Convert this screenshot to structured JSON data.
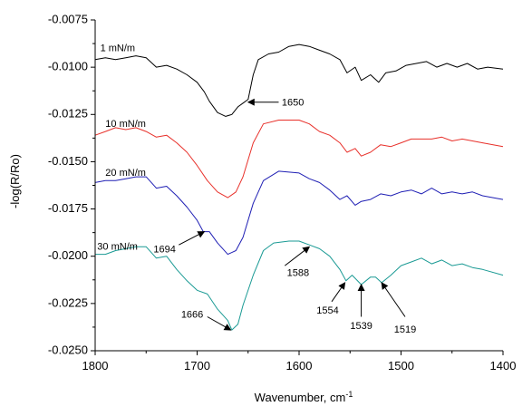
{
  "chart_data": {
    "type": "line",
    "title": "",
    "xlabel": "Wavenumber, cm",
    "xlabel_superscript": "-1",
    "ylabel": "-log(R/Ro)",
    "xlim": [
      1800,
      1400
    ],
    "ylim": [
      -0.025,
      -0.0075
    ],
    "x_ticks": [
      1800,
      1700,
      1600,
      1500,
      1400
    ],
    "x_tick_labels": [
      "1800",
      "1700",
      "1600",
      "1500",
      "1400"
    ],
    "y_ticks": [
      -0.0075,
      -0.01,
      -0.0125,
      -0.015,
      -0.0175,
      -0.02,
      -0.0225,
      -0.025
    ],
    "y_tick_labels": [
      "-0.0075",
      "-0.0100",
      "-0.0125",
      "-0.0150",
      "-0.0175",
      "-0.0200",
      "-0.0225",
      "-0.0250"
    ],
    "grid": false,
    "series": [
      {
        "name": "1 mN/m",
        "color": "#000000",
        "label_pos": [
          1795,
          -0.00915
        ],
        "points": [
          [
            1800,
            -0.0096
          ],
          [
            1790,
            -0.0095
          ],
          [
            1780,
            -0.0096
          ],
          [
            1770,
            -0.0095
          ],
          [
            1760,
            -0.0094
          ],
          [
            1750,
            -0.0095
          ],
          [
            1740,
            -0.01
          ],
          [
            1730,
            -0.0099
          ],
          [
            1720,
            -0.0101
          ],
          [
            1710,
            -0.0104
          ],
          [
            1700,
            -0.0108
          ],
          [
            1693,
            -0.0113
          ],
          [
            1688,
            -0.0118
          ],
          [
            1680,
            -0.0124
          ],
          [
            1672,
            -0.0126
          ],
          [
            1666,
            -0.0125
          ],
          [
            1660,
            -0.0121
          ],
          [
            1655,
            -0.0119
          ],
          [
            1650,
            -0.0117
          ],
          [
            1645,
            -0.0104
          ],
          [
            1640,
            -0.0096
          ],
          [
            1630,
            -0.0093
          ],
          [
            1620,
            -0.0092
          ],
          [
            1610,
            -0.0089
          ],
          [
            1600,
            -0.0088
          ],
          [
            1590,
            -0.0089
          ],
          [
            1580,
            -0.0091
          ],
          [
            1570,
            -0.0093
          ],
          [
            1560,
            -0.0096
          ],
          [
            1553,
            -0.0103
          ],
          [
            1545,
            -0.01
          ],
          [
            1539,
            -0.0107
          ],
          [
            1530,
            -0.0104
          ],
          [
            1522,
            -0.0108
          ],
          [
            1515,
            -0.0103
          ],
          [
            1505,
            -0.0102
          ],
          [
            1495,
            -0.0099
          ],
          [
            1485,
            -0.0098
          ],
          [
            1475,
            -0.0097
          ],
          [
            1465,
            -0.01
          ],
          [
            1455,
            -0.0098
          ],
          [
            1445,
            -0.01
          ],
          [
            1435,
            -0.0098
          ],
          [
            1425,
            -0.0101
          ],
          [
            1415,
            -0.01
          ],
          [
            1400,
            -0.0101
          ]
        ]
      },
      {
        "name": "10 mN/m",
        "color": "#e8302a",
        "label_pos": [
          1790,
          -0.01315
        ],
        "points": [
          [
            1800,
            -0.0136
          ],
          [
            1790,
            -0.0134
          ],
          [
            1780,
            -0.0132
          ],
          [
            1770,
            -0.0133
          ],
          [
            1760,
            -0.0132
          ],
          [
            1750,
            -0.0134
          ],
          [
            1740,
            -0.0137
          ],
          [
            1730,
            -0.0136
          ],
          [
            1720,
            -0.014
          ],
          [
            1710,
            -0.0145
          ],
          [
            1700,
            -0.0152
          ],
          [
            1690,
            -0.016
          ],
          [
            1680,
            -0.0166
          ],
          [
            1670,
            -0.0169
          ],
          [
            1662,
            -0.0166
          ],
          [
            1655,
            -0.0158
          ],
          [
            1645,
            -0.014
          ],
          [
            1635,
            -0.013
          ],
          [
            1620,
            -0.0128
          ],
          [
            1600,
            -0.0128
          ],
          [
            1590,
            -0.013
          ],
          [
            1580,
            -0.0134
          ],
          [
            1570,
            -0.0136
          ],
          [
            1560,
            -0.014
          ],
          [
            1553,
            -0.0145
          ],
          [
            1545,
            -0.0143
          ],
          [
            1539,
            -0.0147
          ],
          [
            1530,
            -0.0145
          ],
          [
            1520,
            -0.0141
          ],
          [
            1510,
            -0.0142
          ],
          [
            1500,
            -0.014
          ],
          [
            1490,
            -0.0138
          ],
          [
            1480,
            -0.0138
          ],
          [
            1470,
            -0.0138
          ],
          [
            1460,
            -0.0137
          ],
          [
            1450,
            -0.0139
          ],
          [
            1440,
            -0.0138
          ],
          [
            1430,
            -0.0139
          ],
          [
            1420,
            -0.014
          ],
          [
            1400,
            -0.0142
          ]
        ]
      },
      {
        "name": "20 mN/m",
        "color": "#1f1fb4",
        "label_pos": [
          1790,
          -0.01575
        ],
        "points": [
          [
            1800,
            -0.0161
          ],
          [
            1790,
            -0.016
          ],
          [
            1780,
            -0.016
          ],
          [
            1770,
            -0.0159
          ],
          [
            1760,
            -0.0158
          ],
          [
            1750,
            -0.0158
          ],
          [
            1740,
            -0.0164
          ],
          [
            1730,
            -0.0163
          ],
          [
            1720,
            -0.0168
          ],
          [
            1710,
            -0.0174
          ],
          [
            1700,
            -0.0181
          ],
          [
            1694,
            -0.0187
          ],
          [
            1688,
            -0.0187
          ],
          [
            1680,
            -0.0193
          ],
          [
            1670,
            -0.0199
          ],
          [
            1662,
            -0.0197
          ],
          [
            1655,
            -0.019
          ],
          [
            1645,
            -0.0172
          ],
          [
            1635,
            -0.016
          ],
          [
            1620,
            -0.0155
          ],
          [
            1600,
            -0.0156
          ],
          [
            1590,
            -0.0159
          ],
          [
            1580,
            -0.0161
          ],
          [
            1570,
            -0.0165
          ],
          [
            1560,
            -0.017
          ],
          [
            1553,
            -0.0168
          ],
          [
            1545,
            -0.0173
          ],
          [
            1539,
            -0.0171
          ],
          [
            1530,
            -0.017
          ],
          [
            1520,
            -0.0167
          ],
          [
            1510,
            -0.0168
          ],
          [
            1500,
            -0.0166
          ],
          [
            1490,
            -0.0165
          ],
          [
            1480,
            -0.0167
          ],
          [
            1470,
            -0.0164
          ],
          [
            1460,
            -0.0167
          ],
          [
            1450,
            -0.0166
          ],
          [
            1440,
            -0.0167
          ],
          [
            1430,
            -0.0166
          ],
          [
            1420,
            -0.0168
          ],
          [
            1400,
            -0.017
          ]
        ]
      },
      {
        "name": "30 mN/m",
        "color": "#1a9a94",
        "label_pos": [
          1798,
          -0.01965
        ],
        "points": [
          [
            1800,
            -0.0199
          ],
          [
            1790,
            -0.0199
          ],
          [
            1780,
            -0.0197
          ],
          [
            1770,
            -0.0196
          ],
          [
            1760,
            -0.0195
          ],
          [
            1750,
            -0.0195
          ],
          [
            1740,
            -0.0201
          ],
          [
            1730,
            -0.02
          ],
          [
            1720,
            -0.0207
          ],
          [
            1710,
            -0.0213
          ],
          [
            1700,
            -0.0218
          ],
          [
            1690,
            -0.022
          ],
          [
            1680,
            -0.0228
          ],
          [
            1670,
            -0.0234
          ],
          [
            1666,
            -0.0239
          ],
          [
            1660,
            -0.0236
          ],
          [
            1655,
            -0.0226
          ],
          [
            1645,
            -0.021
          ],
          [
            1635,
            -0.0197
          ],
          [
            1625,
            -0.0193
          ],
          [
            1610,
            -0.0192
          ],
          [
            1600,
            -0.0192
          ],
          [
            1590,
            -0.0194
          ],
          [
            1580,
            -0.0196
          ],
          [
            1570,
            -0.02
          ],
          [
            1560,
            -0.0207
          ],
          [
            1554,
            -0.0213
          ],
          [
            1548,
            -0.021
          ],
          [
            1539,
            -0.0215
          ],
          [
            1530,
            -0.0211
          ],
          [
            1525,
            -0.0211
          ],
          [
            1519,
            -0.0214
          ],
          [
            1510,
            -0.021
          ],
          [
            1500,
            -0.0205
          ],
          [
            1490,
            -0.0203
          ],
          [
            1480,
            -0.0201
          ],
          [
            1470,
            -0.0204
          ],
          [
            1460,
            -0.0202
          ],
          [
            1450,
            -0.0205
          ],
          [
            1440,
            -0.0204
          ],
          [
            1430,
            -0.0206
          ],
          [
            1420,
            -0.0207
          ],
          [
            1400,
            -0.021
          ]
        ]
      }
    ],
    "annotations": [
      {
        "text": "1650",
        "tip": [
          1650,
          -0.01185
        ],
        "tail": [
          1620,
          -0.01185
        ],
        "label": [
          1617,
          -0.0119
        ],
        "anchor": "start"
      },
      {
        "text": "1694",
        "tip": [
          1693,
          -0.0187
        ],
        "tail": [
          1718,
          -0.0194
        ],
        "label": [
          1721,
          -0.01965
        ],
        "anchor": "end"
      },
      {
        "text": "1588",
        "tip": [
          1590,
          -0.0195
        ],
        "tail": [
          1614,
          -0.0205
        ],
        "label": [
          1601,
          -0.0209
        ],
        "anchor": "middle"
      },
      {
        "text": "1666",
        "tip": [
          1667,
          -0.0239
        ],
        "tail": [
          1690,
          -0.0232
        ],
        "label": [
          1694,
          -0.0231
        ],
        "anchor": "end"
      },
      {
        "text": "1554",
        "tip": [
          1555,
          -0.0214
        ],
        "tail": [
          1568,
          -0.0224
        ],
        "label": [
          1572,
          -0.0229
        ],
        "anchor": "middle"
      },
      {
        "text": "1539",
        "tip": [
          1539,
          -0.0215
        ],
        "tail": [
          1539,
          -0.0232
        ],
        "label": [
          1539,
          -0.0237
        ],
        "anchor": "middle"
      },
      {
        "text": "1519",
        "tip": [
          1519,
          -0.0214
        ],
        "tail": [
          1496,
          -0.0232
        ],
        "label": [
          1496,
          -0.0239
        ],
        "anchor": "middle"
      }
    ]
  }
}
